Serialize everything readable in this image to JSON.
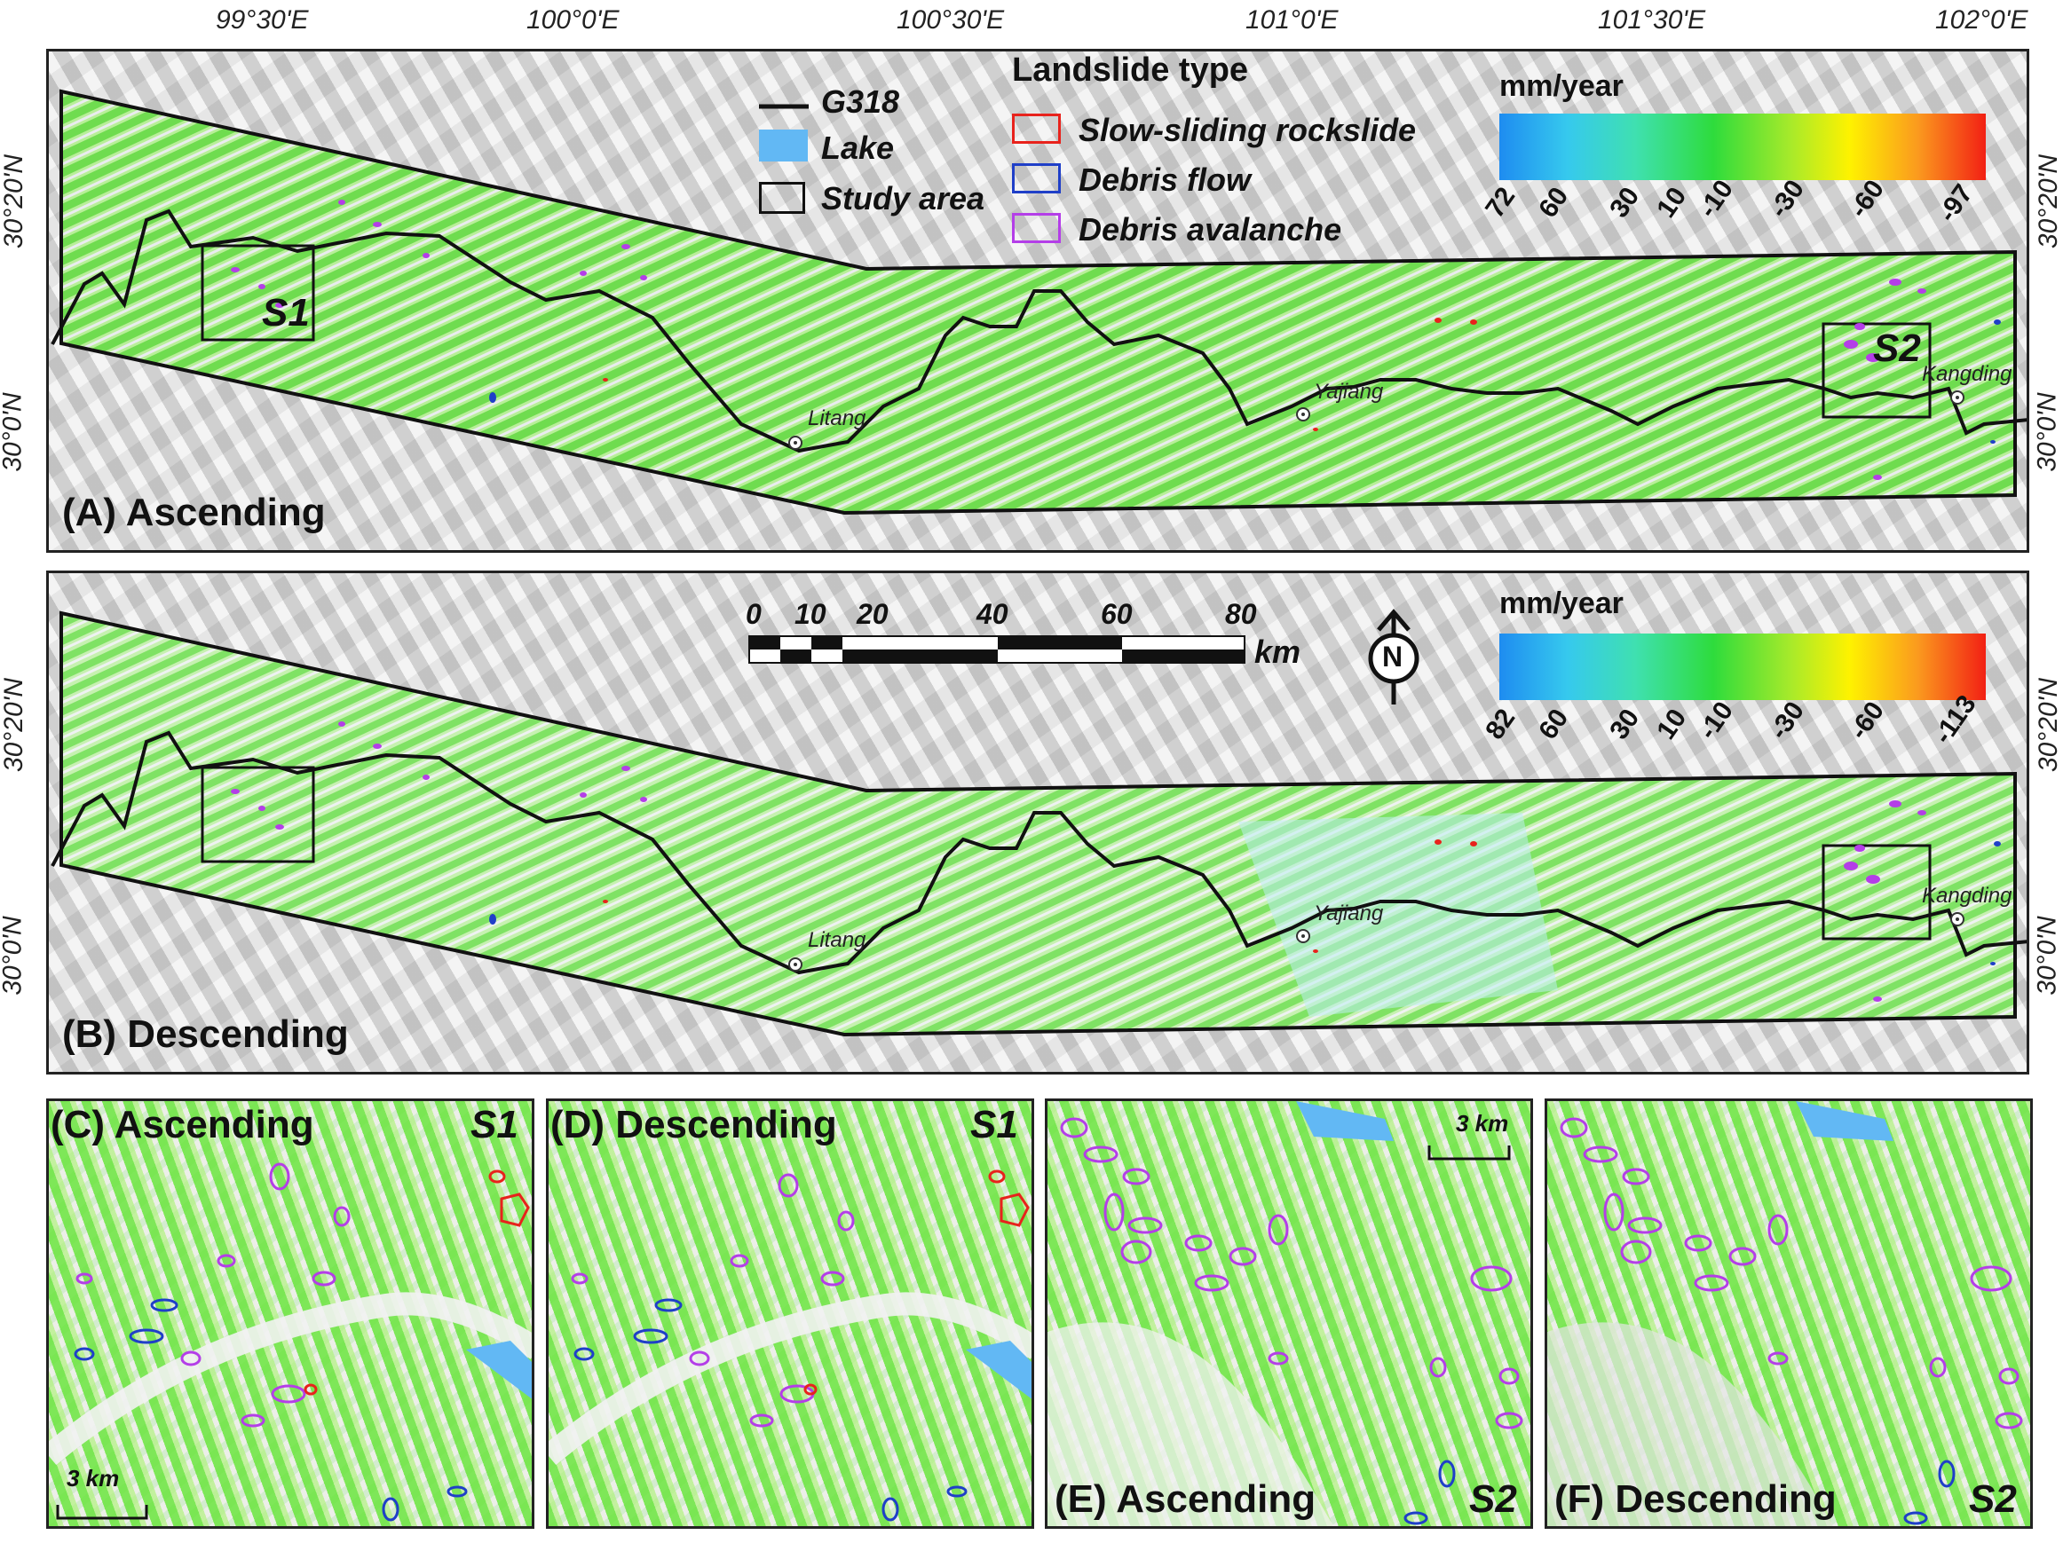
{
  "lon_ticks": [
    "99°30'E",
    "100°0'E",
    "100°30'E",
    "101°0'E",
    "101°30'E",
    "102°0'E"
  ],
  "lat_ticks": [
    "30°20'N",
    "30°0'N"
  ],
  "legend": {
    "road": "G318",
    "lake": "Lake",
    "study_area": "Study area",
    "landslide_title": "Landslide type",
    "types": [
      {
        "label": "Slow-sliding rockslide",
        "color": "#e8221c"
      },
      {
        "label": "Debris flow",
        "color": "#1f3fc8"
      },
      {
        "label": "Debris avalanche",
        "color": "#b43ee8"
      }
    ],
    "lake_color": "#62b8f4"
  },
  "colorbars": {
    "ascending": {
      "unit": "mm/year",
      "labels": [
        "72",
        "60",
        "30",
        "10",
        "-10",
        "-30",
        "-60",
        "-97"
      ]
    },
    "descending": {
      "unit": "mm/year",
      "labels": [
        "82",
        "60",
        "30",
        "10",
        "-10",
        "-30",
        "-60",
        "-113"
      ]
    }
  },
  "scalebar": {
    "labels": [
      "0",
      "10",
      "20",
      "40",
      "60",
      "80"
    ],
    "unit": "km"
  },
  "north_arrow": "N",
  "towns": [
    "Litang",
    "Yajiang",
    "Kangding"
  ],
  "subareas": [
    "S1",
    "S2"
  ],
  "panels": {
    "A": "(A) Ascending",
    "B": "(B) Descending",
    "C": "(C) Ascending",
    "D": "(D) Descending",
    "E": "(E) Ascending",
    "F": "(F) Descending"
  },
  "inset_scale": "3 km"
}
